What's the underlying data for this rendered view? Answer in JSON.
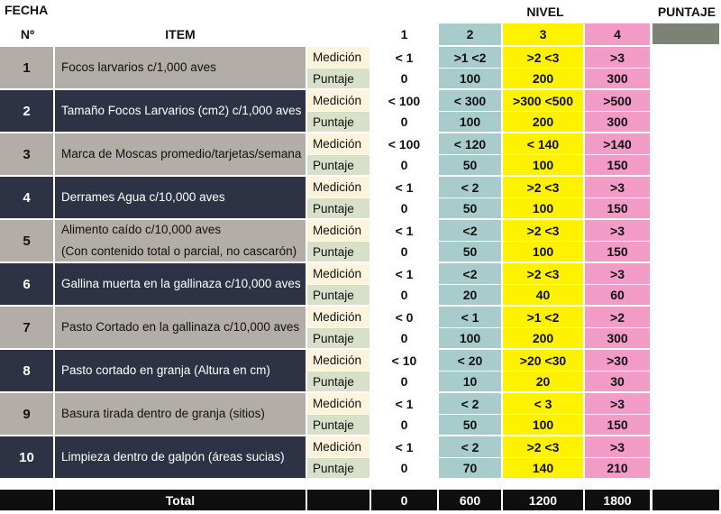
{
  "header": {
    "fecha": "FECHA",
    "nivel": "NIVEL",
    "puntaje": "PUNTAJE",
    "no": "Nº",
    "item": "ITEM",
    "levels": [
      "1",
      "2",
      "3",
      "4"
    ]
  },
  "rows": [
    {
      "num": "1",
      "item": [
        "Focos larvarios c/1,000 aves"
      ],
      "med_label": "Medición",
      "pun_label": "Puntaje",
      "med": [
        "< 1",
        ">1 <2",
        ">2 <3",
        ">3"
      ],
      "pun": [
        "0",
        "100",
        "200",
        "300"
      ]
    },
    {
      "num": "2",
      "item": [
        "Tamaño Focos Larvarios (cm2) c/1,000 aves"
      ],
      "med_label": "Medición",
      "pun_label": "Puntaje",
      "med": [
        "< 100",
        "< 300",
        ">300 <500",
        ">500"
      ],
      "pun": [
        "0",
        "100",
        "200",
        "300"
      ]
    },
    {
      "num": "3",
      "item": [
        "Marca de Moscas promedio/tarjetas/semana"
      ],
      "med_label": "Medición",
      "pun_label": "Puntaje",
      "med": [
        "< 100",
        "< 120",
        "< 140",
        ">140"
      ],
      "pun": [
        "0",
        "50",
        "100",
        "150"
      ]
    },
    {
      "num": "4",
      "item": [
        "Derrames Agua c/10,000 aves"
      ],
      "med_label": "Medición",
      "pun_label": "Puntaje",
      "med": [
        "< 1",
        "< 2",
        ">2 <3",
        ">3"
      ],
      "pun": [
        "0",
        "50",
        "100",
        "150"
      ]
    },
    {
      "num": "5",
      "item": [
        "Alimento caído c/10,000 aves",
        "(Con contenido total o parcial, no cascarón)"
      ],
      "med_label": "Medición",
      "pun_label": "Puntaje",
      "med": [
        "< 1",
        "<2",
        ">2 <3",
        ">3"
      ],
      "pun": [
        "0",
        "50",
        "100",
        "150"
      ]
    },
    {
      "num": "6",
      "item": [
        "Gallina muerta en la gallinaza c/10,000 aves"
      ],
      "med_label": "Medición",
      "pun_label": "Puntaje",
      "med": [
        "< 1",
        "<2",
        ">2 <3",
        ">3"
      ],
      "pun": [
        "0",
        "20",
        "40",
        "60"
      ]
    },
    {
      "num": "7",
      "item": [
        "Pasto Cortado en la gallinaza c/10,000 aves"
      ],
      "med_label": "Medición",
      "pun_label": "Puntaje",
      "med": [
        "< 0",
        "< 1",
        ">1 <2",
        ">2"
      ],
      "pun": [
        "0",
        "100",
        "200",
        "300"
      ]
    },
    {
      "num": "8",
      "item": [
        "Pasto cortado en granja (Altura en cm)"
      ],
      "med_label": "Medición",
      "pun_label": "Puntaje",
      "med": [
        "< 10",
        "< 20",
        ">20 <30",
        ">30"
      ],
      "pun": [
        "0",
        "10",
        "20",
        "30"
      ]
    },
    {
      "num": "9",
      "item": [
        "Basura tirada dentro de granja (sitios)"
      ],
      "med_label": "Medición",
      "pun_label": "Puntaje",
      "med": [
        "< 1",
        "< 2",
        "< 3",
        ">3"
      ],
      "pun": [
        "0",
        "50",
        "100",
        "150"
      ]
    },
    {
      "num": "10",
      "item": [
        "Limpieza dentro de galpón (áreas sucias)"
      ],
      "med_label": "Medición",
      "pun_label": "Puntaje",
      "med": [
        "< 1",
        "< 2",
        ">2 <3",
        ">3"
      ],
      "pun": [
        "0",
        "70",
        "140",
        "210"
      ]
    }
  ],
  "total": {
    "label": "Total",
    "values": [
      "0",
      "600",
      "1200",
      "1800"
    ]
  },
  "colors": {
    "row_light": "#b2ada7",
    "row_dark": "#2d3345",
    "medicion_bg": "#fbf3dc",
    "puntaje_bg": "#d8e0c9",
    "level2": "#a8cccb",
    "level3": "#fff200",
    "level4": "#f29bc7",
    "puntaje_header": "#7c8274",
    "total_bg": "#0f0f0f"
  }
}
